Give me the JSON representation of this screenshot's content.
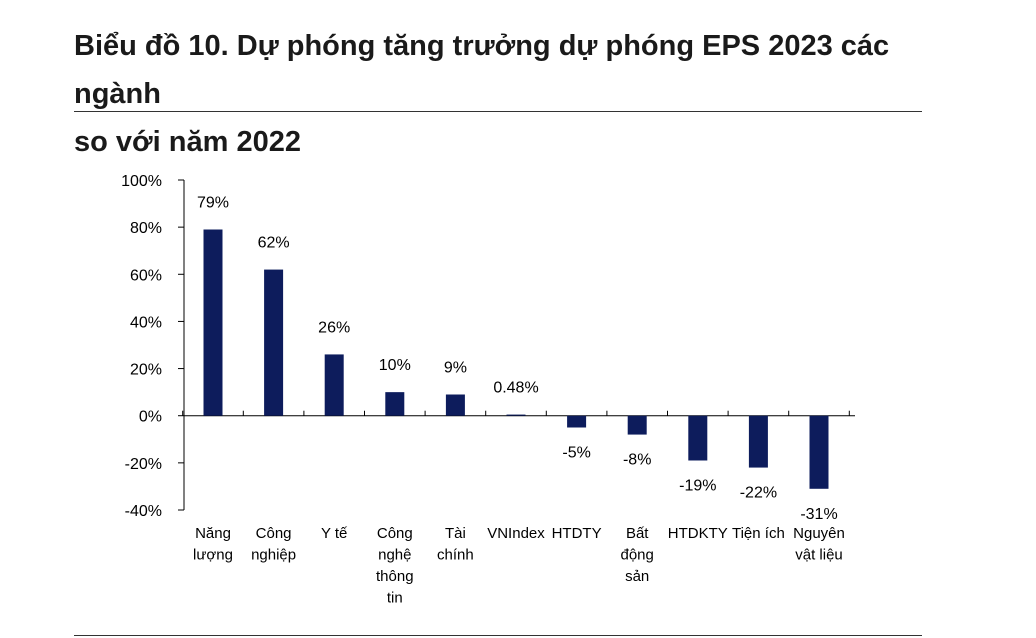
{
  "title_lines": [
    "Biểu đồ 10. Dự phóng tăng trưởng dự phóng EPS 2023 các ngành",
    "so với năm 2022"
  ],
  "chart_data": {
    "type": "bar",
    "title": "Biểu đồ 10. Dự phóng tăng trưởng dự phóng EPS 2023 các ngành so với năm 2022",
    "categories": [
      "Năng lượng",
      "Công nghiệp",
      "Y tế",
      "Công nghệ thông tin",
      "Tài chính",
      "VNIndex",
      "HTDTY",
      "Bất động sản",
      "HTDKTY",
      "Tiện ích",
      "Nguyên vật liệu"
    ],
    "category_lines": [
      [
        "Năng",
        "lượng"
      ],
      [
        "Công",
        "nghiệp"
      ],
      [
        "Y tế"
      ],
      [
        "Công",
        "nghệ",
        "thông",
        "tin"
      ],
      [
        "Tài",
        "chính"
      ],
      [
        "VNIndex"
      ],
      [
        "HTDTY"
      ],
      [
        "Bất",
        "động",
        "sản"
      ],
      [
        "HTDKTY"
      ],
      [
        "Tiện ích"
      ],
      [
        "Nguyên",
        "vật liệu"
      ]
    ],
    "values": [
      79,
      62,
      26,
      10,
      9,
      0.48,
      -5,
      -8,
      -19,
      -22,
      -31
    ],
    "data_labels": [
      "79%",
      "62%",
      "26%",
      "10%",
      "9%",
      "0.48%",
      "-5%",
      "-8%",
      "-19%",
      "-22%",
      "-31%"
    ],
    "ylim": [
      -40,
      100
    ],
    "yticks": [
      100,
      80,
      60,
      40,
      20,
      0,
      -20,
      -40
    ],
    "ytick_labels": [
      "100%",
      "80%",
      "60%",
      "40%",
      "20%",
      "0%",
      "-20%",
      "-40%"
    ],
    "xlabel": "",
    "ylabel": "",
    "grid": false,
    "legend": "none",
    "bar_color": "#0d1c5c"
  }
}
